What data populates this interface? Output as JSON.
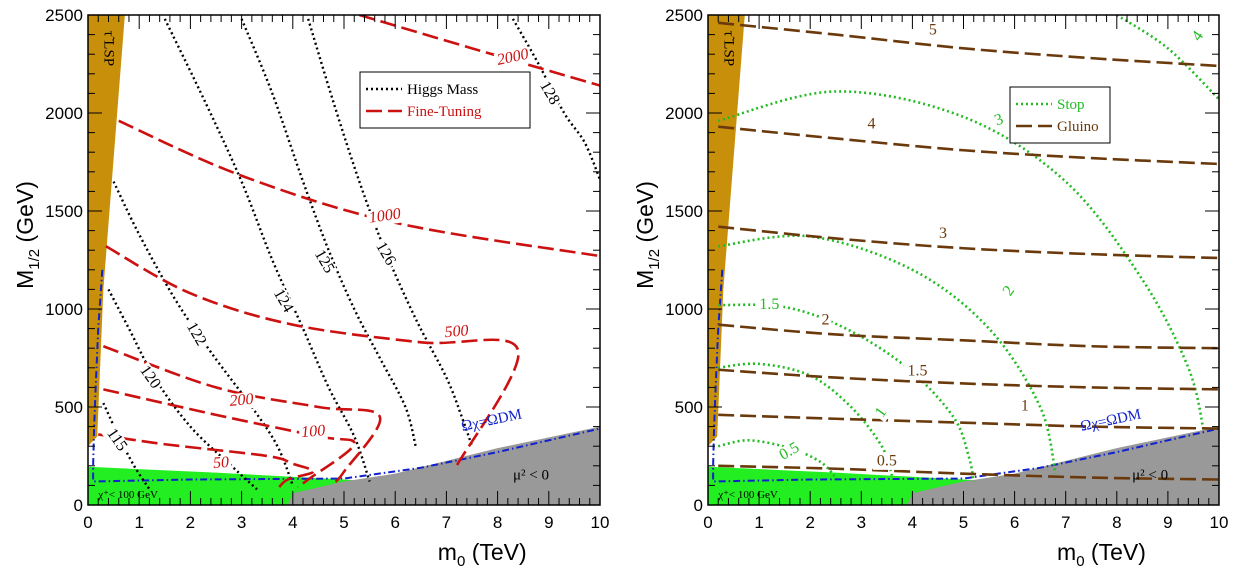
{
  "chart_data": [
    {
      "type": "line",
      "xlabel": "m0 (TeV)",
      "ylabel": "M1/2 (GeV)",
      "xlim": [
        0,
        10
      ],
      "ylim": [
        0,
        2500
      ],
      "x_ticks": [
        "0",
        "1",
        "2",
        "3",
        "4",
        "5",
        "6",
        "7",
        "8",
        "9",
        "10"
      ],
      "y_ticks": [
        "0",
        "500",
        "1000",
        "1500",
        "2000",
        "2500"
      ],
      "legend": {
        "position": "top-right",
        "entries": [
          "Higgs Mass",
          "Fine-Tuning"
        ]
      },
      "colors": {
        "higgs": "#000000",
        "finetuning": "#cc1111",
        "lsp": "#c8900a",
        "chargino": "#22ee22",
        "mu": "#999999",
        "relic": "#1122cc"
      },
      "regions": {
        "stau_lsp": "τ̃ LSP",
        "chargino": "χ⁺< 100 GeV",
        "mu": "μ² < 0",
        "relic": "Ωχ=ΩDM"
      },
      "series": [
        {
          "name": "Higgs Mass",
          "label": "115",
          "points": [
            [
              0.3,
              520
            ],
            [
              0.6,
              350
            ],
            [
              0.9,
              200
            ],
            [
              1.2,
              80
            ]
          ]
        },
        {
          "name": "Higgs Mass",
          "label": "120",
          "points": [
            [
              0.4,
              1100
            ],
            [
              0.8,
              900
            ],
            [
              1.3,
              650
            ],
            [
              2.0,
              400
            ],
            [
              2.8,
              200
            ],
            [
              3.3,
              80
            ]
          ]
        },
        {
          "name": "Higgs Mass",
          "label": "122",
          "points": [
            [
              0.5,
              1650
            ],
            [
              1.0,
              1380
            ],
            [
              1.7,
              1050
            ],
            [
              2.4,
              780
            ],
            [
              3.2,
              500
            ],
            [
              3.7,
              300
            ],
            [
              4.0,
              100
            ]
          ]
        },
        {
          "name": "Higgs Mass",
          "label": "124",
          "points": [
            [
              1.5,
              2480
            ],
            [
              2.3,
              2050
            ],
            [
              3.0,
              1650
            ],
            [
              3.6,
              1250
            ],
            [
              4.2,
              900
            ],
            [
              4.7,
              600
            ],
            [
              5.2,
              350
            ],
            [
              5.5,
              120
            ]
          ]
        },
        {
          "name": "Higgs Mass",
          "label": "125",
          "points": [
            [
              3.0,
              2480
            ],
            [
              3.6,
              2100
            ],
            [
              4.2,
              1650
            ],
            [
              4.7,
              1300
            ],
            [
              5.2,
              1000
            ],
            [
              5.7,
              750
            ],
            [
              6.2,
              500
            ],
            [
              6.4,
              300
            ]
          ]
        },
        {
          "name": "Higgs Mass",
          "label": "126",
          "points": [
            [
              4.3,
              2480
            ],
            [
              4.8,
              2050
            ],
            [
              5.3,
              1650
            ],
            [
              5.8,
              1300
            ],
            [
              6.4,
              950
            ],
            [
              7.0,
              650
            ],
            [
              7.3,
              450
            ],
            [
              7.5,
              300
            ]
          ]
        },
        {
          "name": "Higgs Mass",
          "label": "128",
          "points": [
            [
              8.3,
              2480
            ],
            [
              8.8,
              2250
            ],
            [
              9.3,
              2000
            ],
            [
              9.7,
              1850
            ],
            [
              10.0,
              1660
            ]
          ]
        },
        {
          "name": "Fine-Tuning",
          "label": "50",
          "points": [
            [
              0.2,
              360
            ],
            [
              1.5,
              310
            ],
            [
              3.5,
              250
            ],
            [
              4.0,
              210
            ],
            [
              4.4,
              170
            ],
            [
              3.9,
              130
            ],
            [
              3.7,
              80
            ]
          ]
        },
        {
          "name": "Fine-Tuning",
          "label": "100",
          "points": [
            [
              0.3,
              590
            ],
            [
              2.5,
              460
            ],
            [
              4.5,
              350
            ],
            [
              5.2,
              310
            ],
            [
              4.3,
              130
            ],
            [
              4.1,
              90
            ]
          ]
        },
        {
          "name": "Fine-Tuning",
          "label": "200",
          "points": [
            [
              0.3,
              810
            ],
            [
              2.5,
              600
            ],
            [
              4.5,
              500
            ],
            [
              5.7,
              450
            ],
            [
              5.0,
              170
            ],
            [
              4.8,
              110
            ]
          ]
        },
        {
          "name": "Fine-Tuning",
          "label": "500",
          "points": [
            [
              0.35,
              1320
            ],
            [
              2.0,
              1080
            ],
            [
              4.0,
              920
            ],
            [
              6.5,
              830
            ],
            [
              8.4,
              790
            ],
            [
              7.2,
              200
            ]
          ]
        },
        {
          "name": "Fine-Tuning",
          "label": "1000",
          "points": [
            [
              0.6,
              1960
            ],
            [
              3.0,
              1680
            ],
            [
              6.0,
              1440
            ],
            [
              10.0,
              1270
            ]
          ]
        },
        {
          "name": "Fine-Tuning",
          "label": "2000",
          "points": [
            [
              5.3,
              2500
            ],
            [
              7.5,
              2330
            ],
            [
              10.0,
              2140
            ]
          ]
        }
      ]
    },
    {
      "type": "line",
      "xlabel": "m0 (TeV)",
      "ylabel": "M1/2 (GeV)",
      "xlim": [
        0,
        10
      ],
      "ylim": [
        0,
        2500
      ],
      "x_ticks": [
        "0",
        "1",
        "2",
        "3",
        "4",
        "5",
        "6",
        "7",
        "8",
        "9",
        "10"
      ],
      "y_ticks": [
        "0",
        "500",
        "1000",
        "1500",
        "2000",
        "2500"
      ],
      "legend": {
        "position": "top-right",
        "entries": [
          "Stop",
          "Gluino"
        ]
      },
      "colors": {
        "stop": "#22bb22",
        "gluino": "#6b3a0c",
        "lsp": "#c8900a",
        "chargino": "#22ee22",
        "mu": "#999999",
        "relic": "#1122cc"
      },
      "regions": {
        "stau_lsp": "τ̃ LSP",
        "chargino": "χ⁺< 100 GeV",
        "mu": "μ² < 0",
        "relic": "Ωχ=ΩDM"
      },
      "series": [
        {
          "name": "Stop",
          "label": "0.5",
          "points": [
            [
              0.2,
              300
            ],
            [
              0.8,
              330
            ],
            [
              1.6,
              290
            ],
            [
              2.2,
              220
            ],
            [
              2.5,
              140
            ]
          ]
        },
        {
          "name": "Stop",
          "label": "1",
          "points": [
            [
              0.2,
              700
            ],
            [
              1.0,
              720
            ],
            [
              2.0,
              660
            ],
            [
              2.8,
              500
            ],
            [
              3.4,
              300
            ],
            [
              3.6,
              150
            ]
          ]
        },
        {
          "name": "Stop",
          "label": "1.5",
          "points": [
            [
              0.2,
              1020
            ],
            [
              1.5,
              1010
            ],
            [
              2.7,
              900
            ],
            [
              3.9,
              700
            ],
            [
              4.8,
              450
            ],
            [
              5.1,
              250
            ],
            [
              5.2,
              120
            ]
          ]
        },
        {
          "name": "Stop",
          "label": "2",
          "points": [
            [
              0.2,
              1320
            ],
            [
              2.0,
              1370
            ],
            [
              4.0,
              1200
            ],
            [
              5.5,
              900
            ],
            [
              6.5,
              500
            ],
            [
              6.8,
              160
            ]
          ]
        },
        {
          "name": "Stop",
          "label": "3",
          "points": [
            [
              0.2,
              1960
            ],
            [
              2.5,
              2110
            ],
            [
              5.0,
              1980
            ],
            [
              7.0,
              1650
            ],
            [
              8.5,
              1150
            ],
            [
              9.4,
              700
            ],
            [
              9.7,
              380
            ]
          ]
        },
        {
          "name": "Stop",
          "label": "4",
          "points": [
            [
              8.0,
              2500
            ],
            [
              9.0,
              2330
            ],
            [
              10.0,
              2070
            ]
          ]
        },
        {
          "name": "Gluino",
          "label": "0.5",
          "points": [
            [
              0.2,
              200
            ],
            [
              2.5,
              185
            ],
            [
              5.0,
              160
            ],
            [
              7.5,
              140
            ],
            [
              10.0,
              130
            ]
          ]
        },
        {
          "name": "Gluino",
          "label": "1",
          "points": [
            [
              0.2,
              460
            ],
            [
              2.5,
              440
            ],
            [
              5.0,
              420
            ],
            [
              7.5,
              400
            ],
            [
              10.0,
              390
            ]
          ]
        },
        {
          "name": "Gluino",
          "label": "1.5",
          "points": [
            [
              0.2,
              690
            ],
            [
              2.5,
              650
            ],
            [
              5.0,
              620
            ],
            [
              7.5,
              600
            ],
            [
              10.0,
              590
            ]
          ]
        },
        {
          "name": "Gluino",
          "label": "2",
          "points": [
            [
              0.2,
              920
            ],
            [
              2.5,
              870
            ],
            [
              5.0,
              840
            ],
            [
              7.5,
              810
            ],
            [
              10.0,
              800
            ]
          ]
        },
        {
          "name": "Gluino",
          "label": "3",
          "points": [
            [
              0.2,
              1420
            ],
            [
              2.5,
              1360
            ],
            [
              5.0,
              1310
            ],
            [
              7.5,
              1280
            ],
            [
              10.0,
              1260
            ]
          ]
        },
        {
          "name": "Gluino",
          "label": "4",
          "points": [
            [
              0.2,
              1930
            ],
            [
              2.5,
              1870
            ],
            [
              5.0,
              1810
            ],
            [
              7.5,
              1770
            ],
            [
              10.0,
              1740
            ]
          ]
        },
        {
          "name": "Gluino",
          "label": "5",
          "points": [
            [
              0.2,
              2460
            ],
            [
              2.5,
              2400
            ],
            [
              5.0,
              2330
            ],
            [
              7.5,
              2280
            ],
            [
              10.0,
              2240
            ]
          ]
        }
      ]
    }
  ]
}
